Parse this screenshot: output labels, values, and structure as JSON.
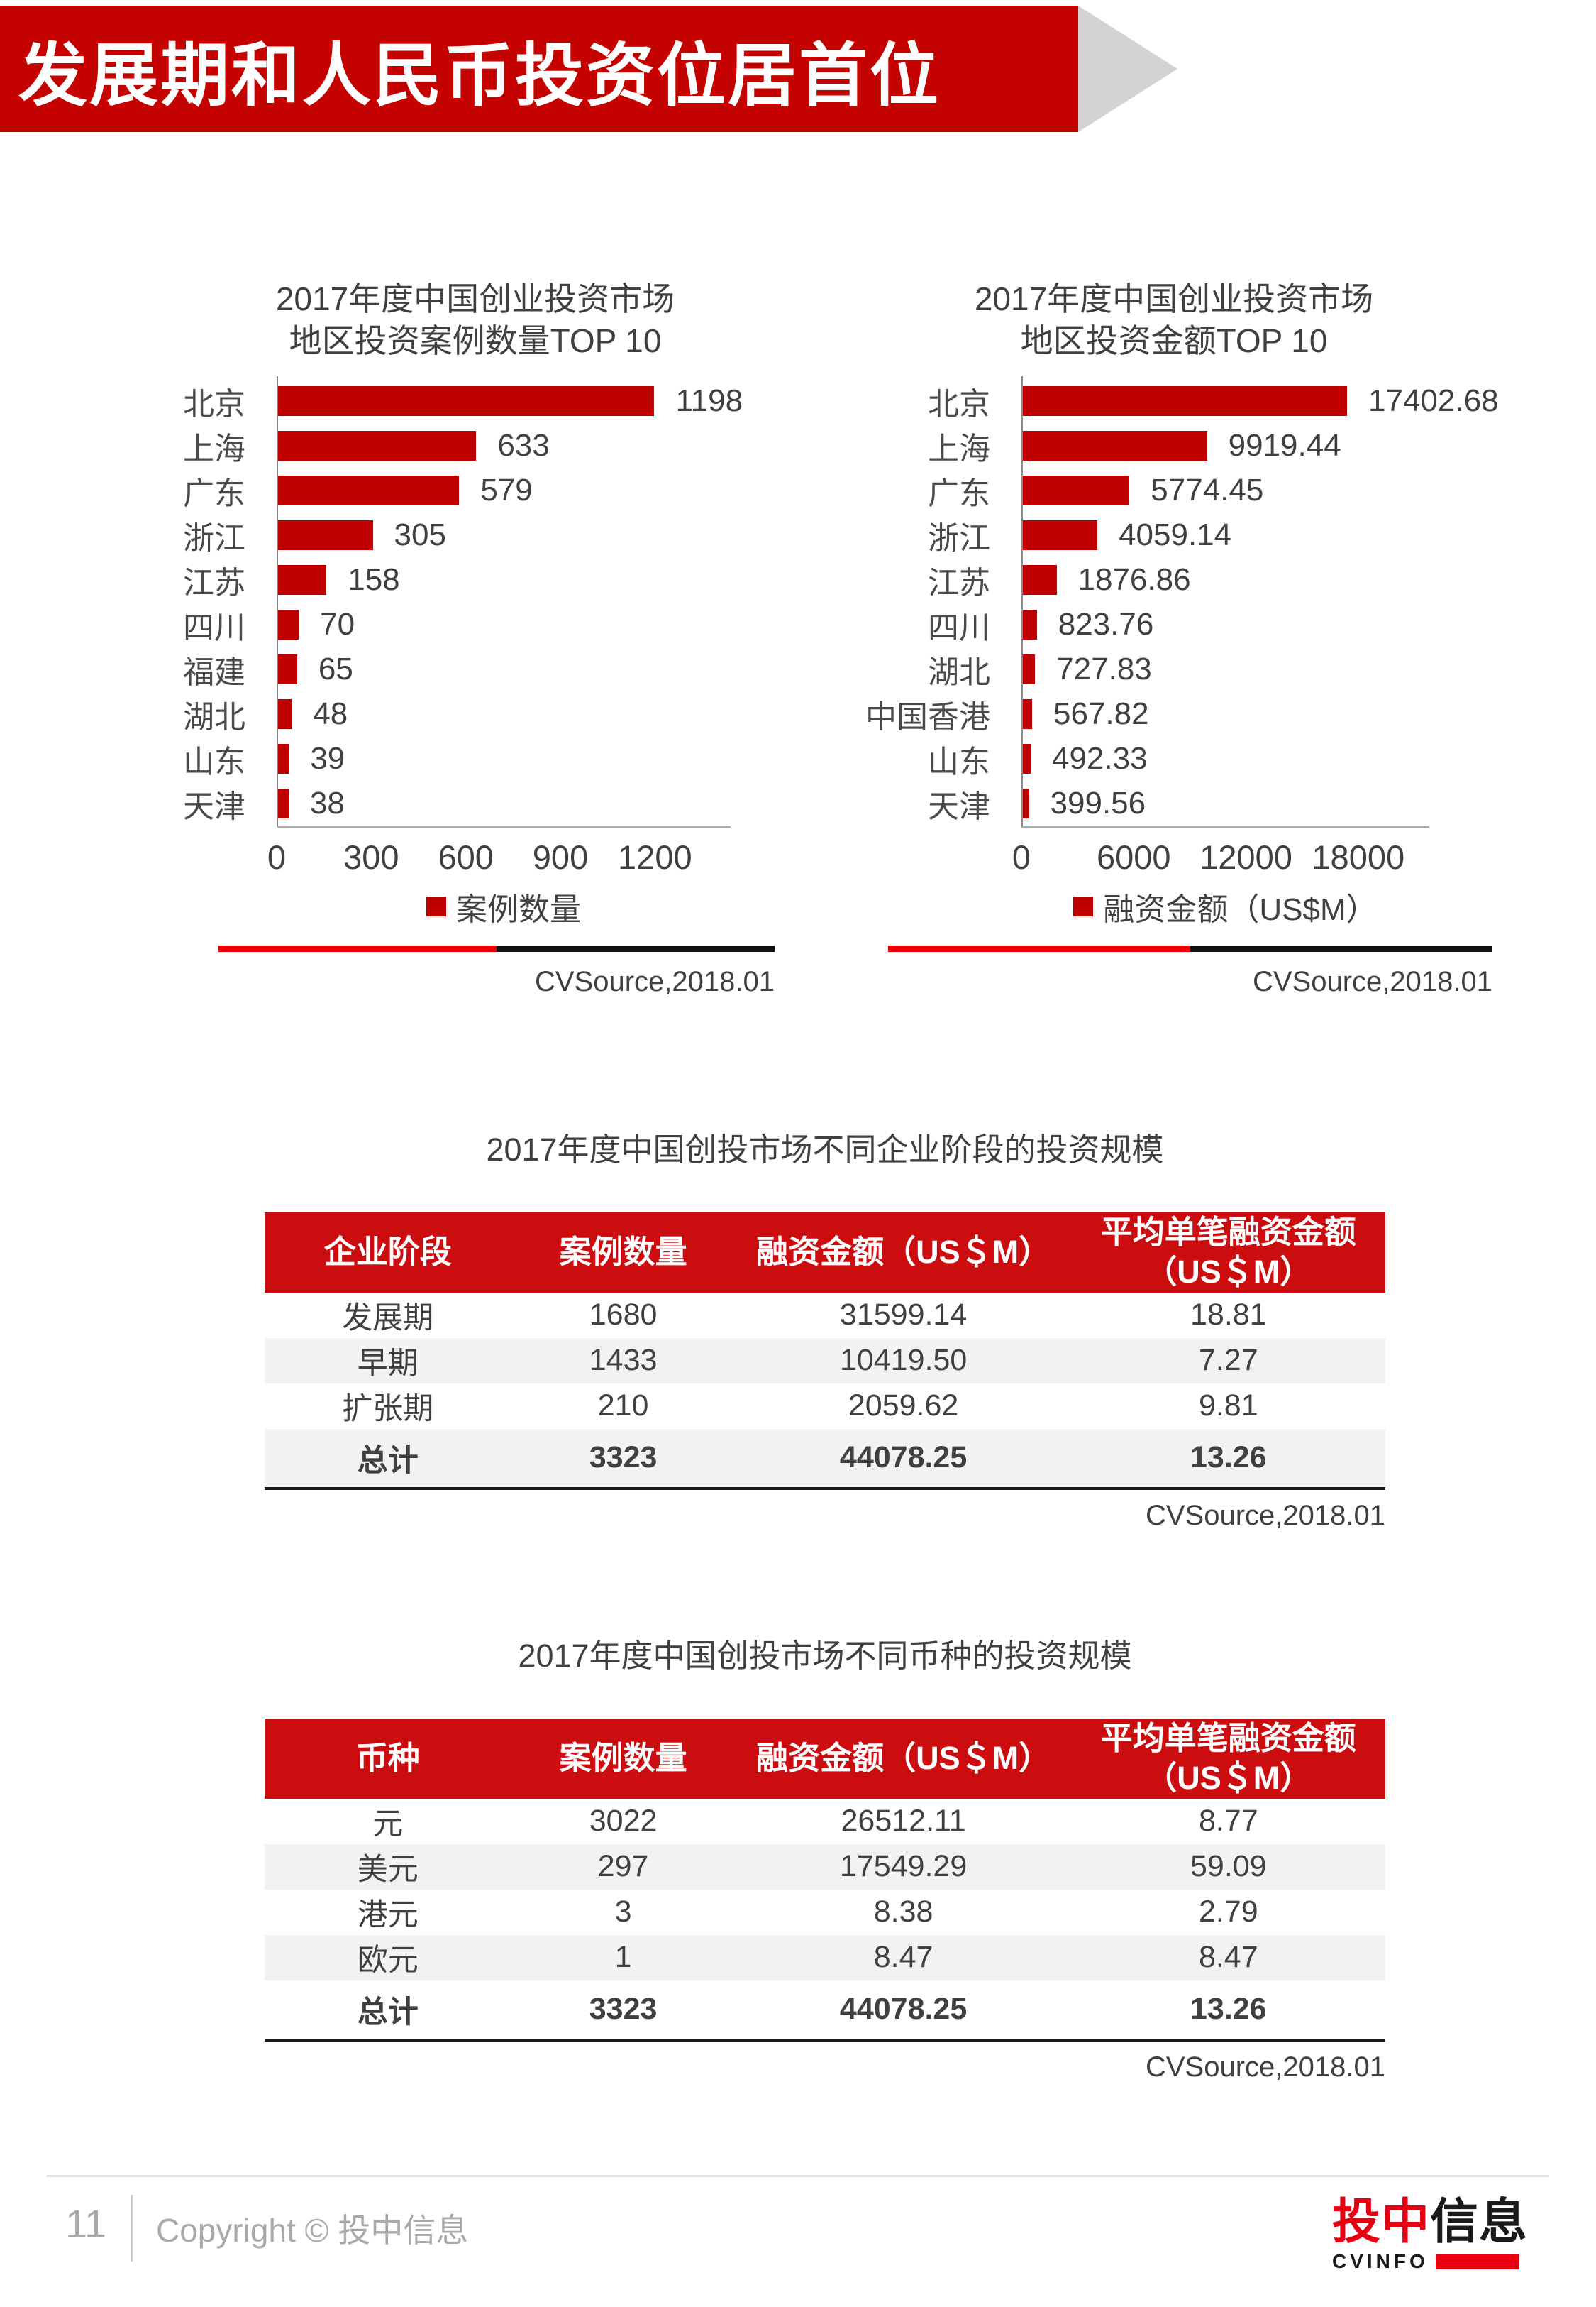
{
  "header": {
    "title": "发展期和人民币投资位居首位"
  },
  "footer": {
    "page_number": "11",
    "copyright": "Copyright © 投中信息",
    "logo": {
      "red": "投中",
      "black": "信息",
      "sub": "CVINFO"
    }
  },
  "colors": {
    "banner_red": "#C40300",
    "bar_red": "#C00000",
    "table_header_red": "#CB0D10",
    "divider_red": "#EC0000",
    "divider_black": "#111111",
    "logo_red": "#E60012",
    "text_gray": "#404040",
    "footer_gray": "#A9A9A9",
    "stripe_gray": "#F2F2F2",
    "chevron_gray": "#D3D3D3"
  },
  "chart_data": [
    {
      "type": "bar",
      "orientation": "horizontal",
      "title_lines": [
        "2017年度中国创业投资市场",
        "地区投资案例数量TOP 10"
      ],
      "categories": [
        "北京",
        "上海",
        "广东",
        "浙江",
        "江苏",
        "四川",
        "福建",
        "湖北",
        "山东",
        "天津"
      ],
      "values": [
        1198,
        633,
        579,
        305,
        158,
        70,
        65,
        48,
        39,
        38
      ],
      "value_labels": [
        "1198",
        "633",
        "579",
        "305",
        "158",
        "70",
        "65",
        "48",
        "39",
        "38"
      ],
      "xticks": [
        0,
        300,
        600,
        900,
        1200
      ],
      "xlim": [
        0,
        1440
      ],
      "grid": false,
      "legend": "案例数量",
      "legend_position": "bottom",
      "source": "CVSource,2018.01"
    },
    {
      "type": "bar",
      "orientation": "horizontal",
      "title_lines": [
        "2017年度中国创业投资市场",
        "地区投资金额TOP 10"
      ],
      "categories": [
        "北京",
        "上海",
        "广东",
        "浙江",
        "江苏",
        "四川",
        "湖北",
        "中国香港",
        "山东",
        "天津"
      ],
      "values": [
        17402.68,
        9919.44,
        5774.45,
        4059.14,
        1876.86,
        823.76,
        727.83,
        567.82,
        492.33,
        399.56
      ],
      "value_labels": [
        "17402.68",
        "9919.44",
        "5774.45",
        "4059.14",
        "1876.86",
        "823.76",
        "727.83",
        "567.82",
        "492.33",
        "399.56"
      ],
      "xticks": [
        0,
        6000,
        12000,
        18000
      ],
      "xlim": [
        0,
        21800
      ],
      "grid": false,
      "legend": "融资金额（US$M）",
      "legend_position": "bottom",
      "source": "CVSource,2018.01"
    },
    {
      "type": "table",
      "title": "2017年度中国创投市场不同企业阶段的投资规模",
      "columns": [
        "企业阶段",
        "案例数量",
        "融资金额（US＄M）",
        "平均单笔融资金额\n（US＄M）"
      ],
      "rows": [
        [
          "发展期",
          "1680",
          "31599.14",
          "18.81"
        ],
        [
          "早期",
          "1433",
          "10419.50",
          "7.27"
        ],
        [
          "扩张期",
          "210",
          "2059.62",
          "9.81"
        ],
        [
          "总计",
          "3323",
          "44078.25",
          "13.26"
        ]
      ],
      "total_row_label": "总计",
      "source": "CVSource,2018.01"
    },
    {
      "type": "table",
      "title": "2017年度中国创投市场不同币种的投资规模",
      "columns": [
        "币种",
        "案例数量",
        "融资金额（US＄M）",
        "平均单笔融资金额\n（US＄M）"
      ],
      "rows": [
        [
          "元",
          "3022",
          "26512.11",
          "8.77"
        ],
        [
          "美元",
          "297",
          "17549.29",
          "59.09"
        ],
        [
          "港元",
          "3",
          "8.38",
          "2.79"
        ],
        [
          "欧元",
          "1",
          "8.47",
          "8.47"
        ],
        [
          "总计",
          "3323",
          "44078.25",
          "13.26"
        ]
      ],
      "total_row_label": "总计",
      "source": "CVSource,2018.01"
    }
  ]
}
